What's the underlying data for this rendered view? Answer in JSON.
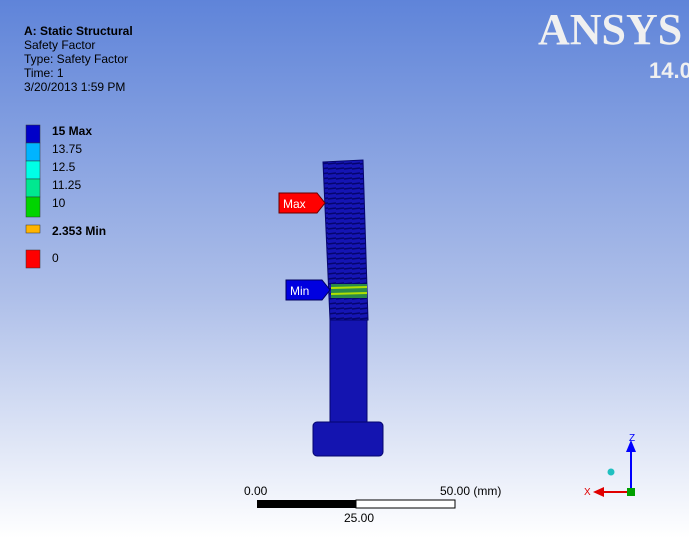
{
  "header": {
    "lines": [
      "A: Static Structural",
      "Safety Factor",
      "Type: Safety Factor",
      "Time: 1",
      "3/20/2013 1:59 PM"
    ]
  },
  "logo": {
    "name": "ANSYS",
    "version": "14.0"
  },
  "legend": {
    "entries": [
      {
        "label": "15 Max",
        "color": "#0000c8"
      },
      {
        "label": "13.75",
        "color": "#00b4ff"
      },
      {
        "label": "12.5",
        "color": "#00ffe6"
      },
      {
        "label": "11.25",
        "color": "#00e890"
      },
      {
        "label": "10",
        "color": "#00d400"
      },
      {
        "label": "2.353 Min",
        "color": "#ffb400"
      },
      {
        "label": "0",
        "color": "#ff0000"
      }
    ]
  },
  "probes": {
    "max": "Max",
    "min": "Min"
  },
  "scale_bar": {
    "start": "0.00",
    "end": "50.00 (mm)",
    "middle": "25.00"
  },
  "triad": {
    "z": "Z",
    "x": "X"
  }
}
